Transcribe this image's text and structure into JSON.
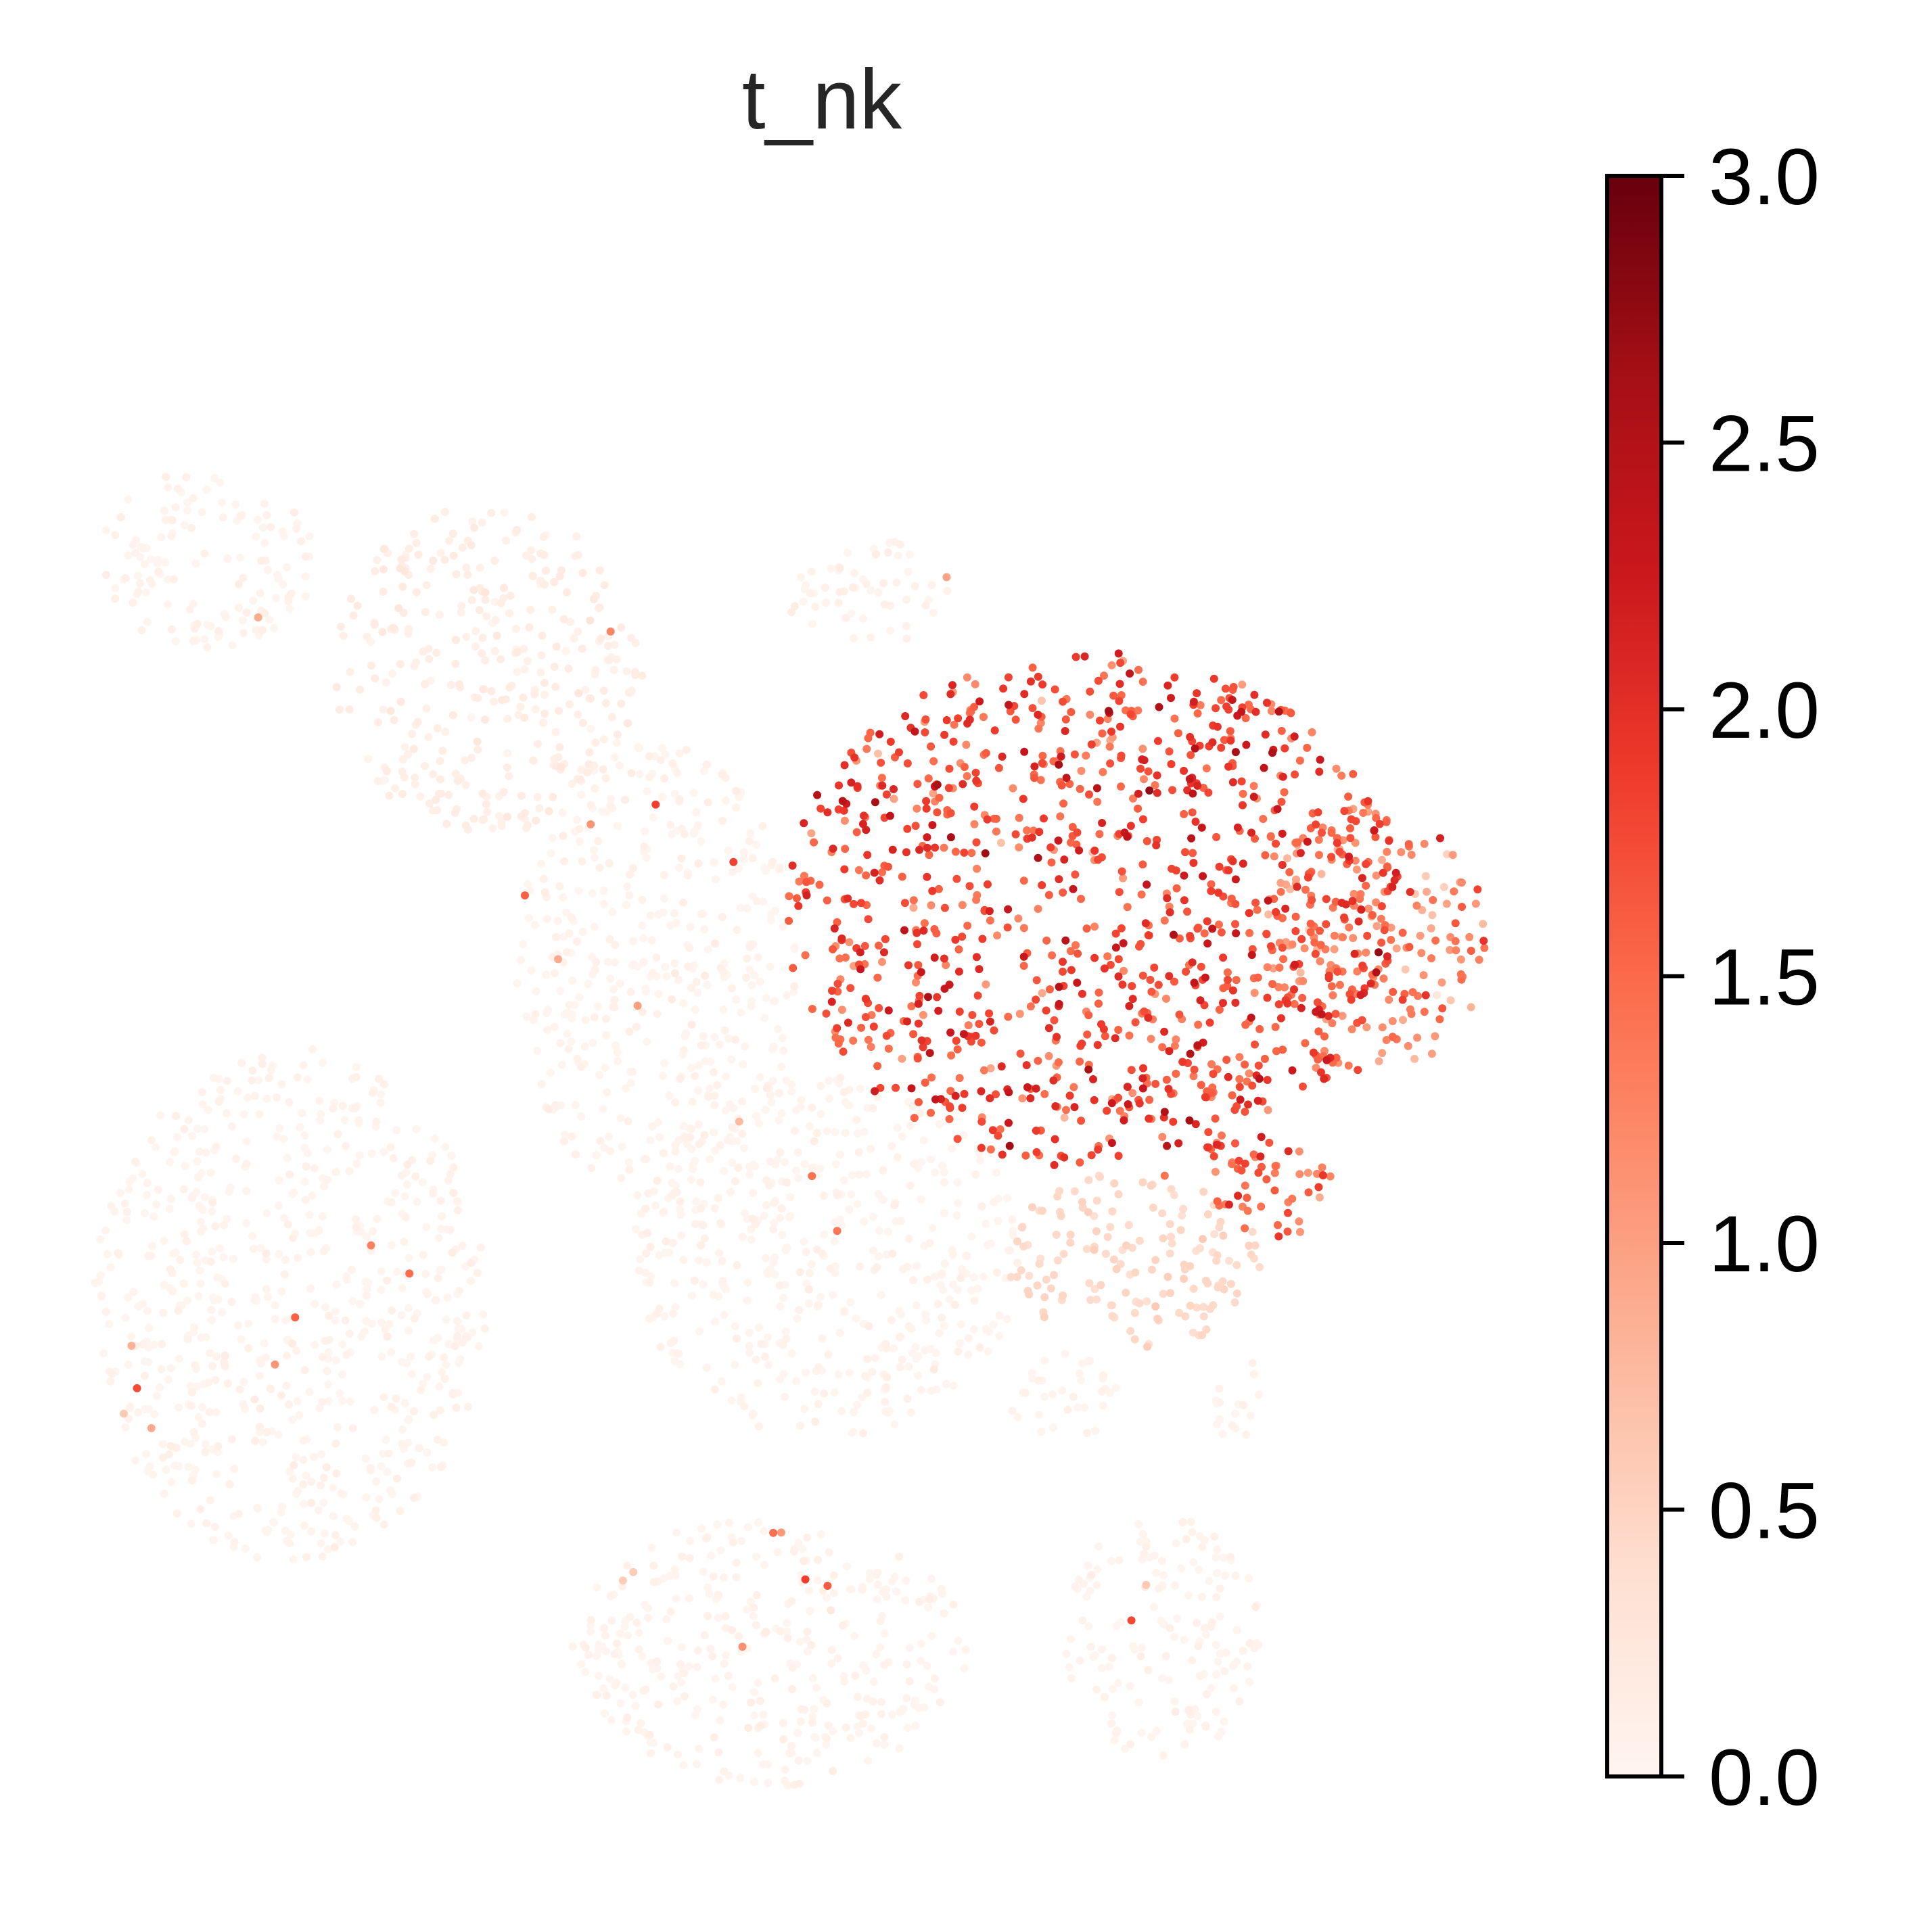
{
  "chart_data": {
    "type": "scatter",
    "title": "t_nk",
    "xlabel": "",
    "ylabel": "",
    "grid": false,
    "axes_visible": false,
    "colormap": "Reds",
    "colormap_stops": [
      "#fff5f0",
      "#fee0d2",
      "#fcbba1",
      "#fc9272",
      "#fb6a4a",
      "#ef3b2c",
      "#cb181d",
      "#a50f15",
      "#67000d"
    ],
    "colorbar": {
      "vmin": 0.0,
      "vmax": 3.0,
      "ticks": [
        0.0,
        0.5,
        1.0,
        1.5,
        2.0,
        2.5,
        3.0
      ],
      "tick_labels": [
        "0.0",
        "0.5",
        "1.0",
        "1.5",
        "2.0",
        "2.5",
        "3.0"
      ],
      "placement": "right"
    },
    "clusters": [
      {
        "cx": 0.06,
        "cy": 0.79,
        "rx": 0.08,
        "ry": 0.06,
        "mean": 0.02
      },
      {
        "cx": 0.26,
        "cy": 0.72,
        "rx": 0.11,
        "ry": 0.11,
        "mean": 0.12
      },
      {
        "cx": 0.53,
        "cy": 0.77,
        "rx": 0.06,
        "ry": 0.035,
        "mean": 0.04
      },
      {
        "cx": 0.38,
        "cy": 0.52,
        "rx": 0.1,
        "ry": 0.15,
        "mean": 0.03
      },
      {
        "cx": 0.5,
        "cy": 0.33,
        "rx": 0.14,
        "ry": 0.12,
        "mean": 0.02
      },
      {
        "cx": 0.12,
        "cy": 0.3,
        "rx": 0.14,
        "ry": 0.17,
        "mean": 0.02
      },
      {
        "cx": 0.46,
        "cy": 0.07,
        "rx": 0.14,
        "ry": 0.09,
        "mean": 0.02
      },
      {
        "cx": 0.74,
        "cy": 0.08,
        "rx": 0.07,
        "ry": 0.08,
        "mean": 0.02
      },
      {
        "cx": 0.69,
        "cy": 0.56,
        "rx": 0.22,
        "ry": 0.17,
        "mean": 1.75
      },
      {
        "cx": 0.89,
        "cy": 0.54,
        "rx": 0.08,
        "ry": 0.09,
        "mean": 1.25
      },
      {
        "cx": 0.81,
        "cy": 0.38,
        "rx": 0.05,
        "ry": 0.04,
        "mean": 1.55
      },
      {
        "cx": 0.72,
        "cy": 0.33,
        "rx": 0.09,
        "ry": 0.06,
        "mean": 0.45
      },
      {
        "cx": 0.67,
        "cy": 0.24,
        "rx": 0.04,
        "ry": 0.03,
        "mean": 0.02
      },
      {
        "cx": 0.79,
        "cy": 0.24,
        "rx": 0.02,
        "ry": 0.03,
        "mean": 0.03
      }
    ]
  }
}
